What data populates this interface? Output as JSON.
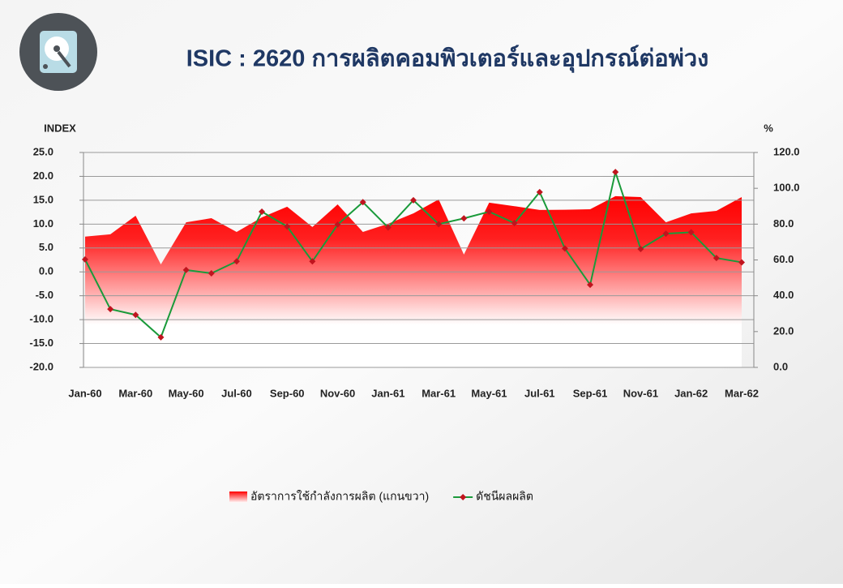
{
  "chart_data": {
    "type": "line-area",
    "title": "ISIC : 2620 การผลิตคอมพิวเตอร์และอุปกรณ์ต่อพ่วง",
    "y_label": "INDEX",
    "y2_label": "%",
    "categories": [
      "Jan-60",
      null,
      "Mar-60",
      null,
      "May-60",
      null,
      "Jul-60",
      null,
      "Sep-60",
      null,
      "Nov-60",
      null,
      "Jan-61",
      null,
      "Mar-61",
      null,
      "May-61",
      null,
      "Jul-61",
      null,
      "Sep-61",
      null,
      "Nov-61",
      null,
      "Jan-62",
      null,
      "Mar-62"
    ],
    "ylim": [
      -20,
      25
    ],
    "yticks": [
      {
        "value": -20,
        "label": "-20.0"
      },
      {
        "value": -15,
        "label": "-15.0"
      },
      {
        "value": -10,
        "label": "-10.0"
      },
      {
        "value": -5,
        "label": "-5.0"
      },
      {
        "value": 0,
        "label": "0.0"
      },
      {
        "value": 5,
        "label": "5.0"
      },
      {
        "value": 10,
        "label": "10.0"
      },
      {
        "value": 15,
        "label": "15.0"
      },
      {
        "value": 20,
        "label": "20.0"
      },
      {
        "value": 25,
        "label": "25.0"
      }
    ],
    "y2lim": [
      0,
      120
    ],
    "y2ticks": [
      {
        "value": 0,
        "label": "0.0"
      },
      {
        "value": 20,
        "label": "20.0"
      },
      {
        "value": 40,
        "label": "40.0"
      },
      {
        "value": 60,
        "label": "60.0"
      },
      {
        "value": 80,
        "label": "80.0"
      },
      {
        "value": 100,
        "label": "100.0"
      },
      {
        "value": 120,
        "label": "120.0"
      }
    ],
    "grid": true,
    "legend": "bottom",
    "series": [
      {
        "name": "อัตราการใช้กำลังการผลิต (แกนขวา)",
        "kind": "area",
        "axis": "y2",
        "color": "#ff0000",
        "values": [
          73,
          74.3,
          84.7,
          57.5,
          81,
          83.3,
          75.6,
          83.8,
          89.7,
          78.4,
          91,
          75.6,
          80.2,
          86,
          93.8,
          63,
          92,
          90,
          87.9,
          88,
          88.3,
          95.6,
          95.1,
          81,
          86,
          87.4,
          95.1
        ]
      },
      {
        "name": "ดัชนีผลผลิต",
        "kind": "line",
        "axis": "y",
        "color": "#1a9a3a",
        "marker_color": "#c0141e",
        "values": [
          2.6,
          -7.8,
          -9.0,
          -13.7,
          0.4,
          -0.3,
          2.2,
          12.6,
          9.5,
          2.2,
          9.9,
          14.6,
          9.3,
          15.0,
          10.0,
          11.2,
          12.6,
          10.2,
          16.7,
          4.9,
          -2.7,
          20.9,
          4.8,
          8.0,
          8.3,
          2.9,
          2.0
        ]
      }
    ]
  }
}
